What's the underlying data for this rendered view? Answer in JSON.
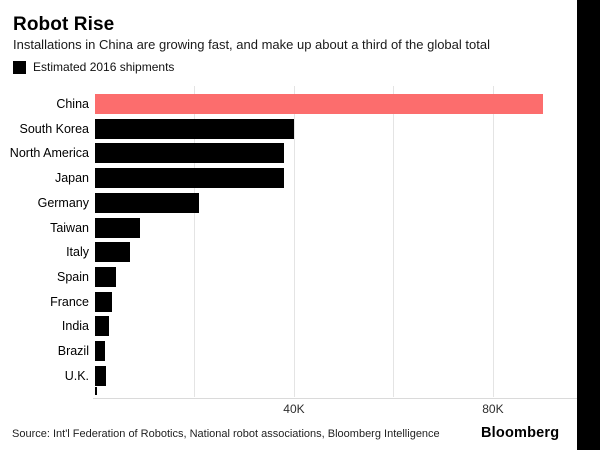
{
  "header": {
    "title": "Robot Rise",
    "subtitle": "Installations in China are growing fast, and make up about a third of the global total"
  },
  "legend": {
    "label": "Estimated 2016 shipments",
    "swatch_color": "#000000"
  },
  "chart_data": {
    "type": "bar",
    "orientation": "horizontal",
    "title": "Robot Rise",
    "subtitle": "Installations in China are growing fast, and make up about a third of the global total",
    "legend_entries": [
      "Estimated 2016 shipments"
    ],
    "categories": [
      "China",
      "South Korea",
      "North America",
      "Japan",
      "Germany",
      "Taiwan",
      "Italy",
      "Spain",
      "France",
      "India",
      "Brazil",
      "U.K."
    ],
    "values_thousands": [
      90,
      40,
      38,
      38,
      21,
      9,
      7,
      4.2,
      3.4,
      2.8,
      2,
      2.2
    ],
    "unit": "K",
    "xlabel": "",
    "ylabel": "",
    "xlim_thousands": [
      0,
      96.9
    ],
    "x_ticks": [
      {
        "value": 20,
        "label": ""
      },
      {
        "value": 40,
        "label": "40K"
      },
      {
        "value": 60,
        "label": ""
      },
      {
        "value": 80,
        "label": "80K"
      }
    ],
    "grid": "vertical-light-gray",
    "legend_position": "top-left",
    "colors": {
      "highlight_category": "China",
      "highlight_color": "#fc6d6d",
      "default_color": "#000000",
      "gridline_color": "#e4e4e4"
    }
  },
  "footer": {
    "source": "Source: Int'l Federation of Robotics, National robot associations, Bloomberg Intelligence",
    "brand": "Bloomberg"
  }
}
